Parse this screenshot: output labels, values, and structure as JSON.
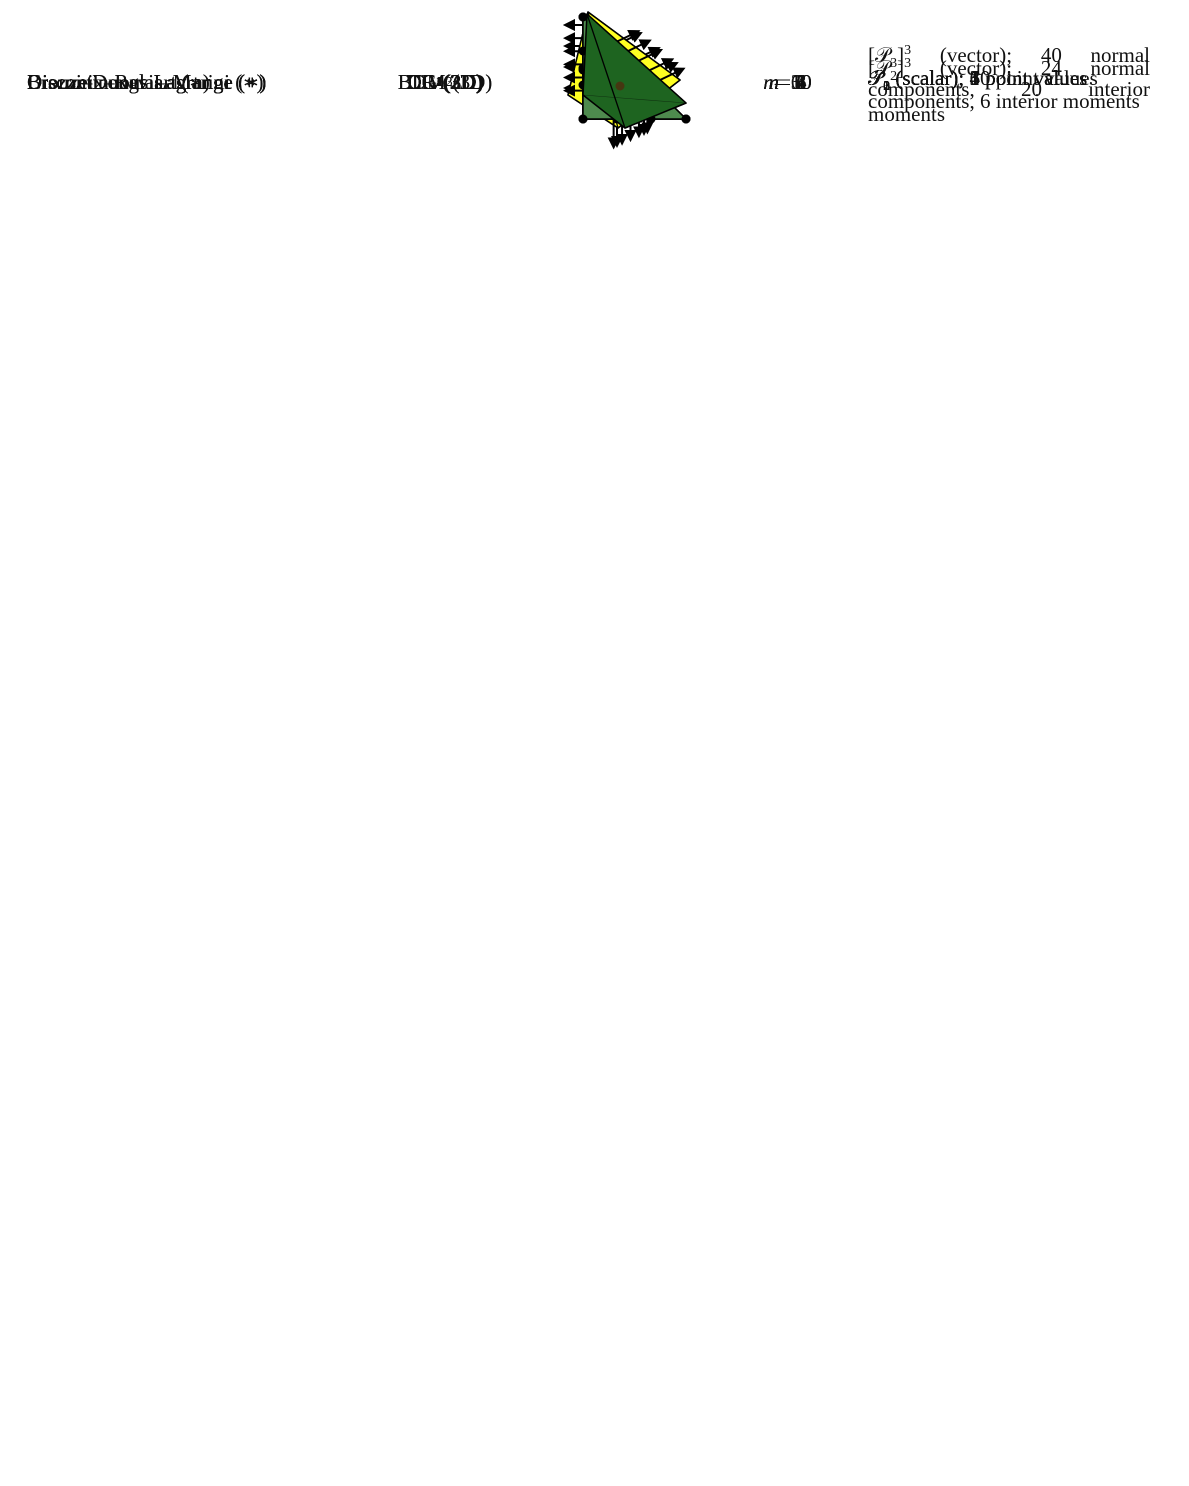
{
  "table": {
    "rows": [
      {
        "name": "Brezzi–Douglas–Marini (∗)",
        "element": [
          {
            "text": "BDM"
          },
          {
            "sub": "2"
          },
          {
            "text": " (3D)"
          }
        ],
        "dofs": [
          {
            "italic": "n"
          },
          {
            "text": " = 30"
          }
        ],
        "description": [
          {
            "text": "[𝒫"
          },
          {
            "sub": "2"
          },
          {
            "text": "]"
          },
          {
            "sup": "3"
          },
          {
            "text": " (vector); 24 normal components, 6 interior moments"
          }
        ]
      },
      {
        "name": "Brezzi–Douglas–Marini (∗)",
        "element": [
          {
            "text": "BDM"
          },
          {
            "sub": "3"
          },
          {
            "text": " (3D)"
          }
        ],
        "dofs": [
          {
            "italic": "n"
          },
          {
            "text": " = 60"
          }
        ],
        "description": [
          {
            "text": "[𝒫"
          },
          {
            "sub": "3"
          },
          {
            "text": "]"
          },
          {
            "sup": "3"
          },
          {
            "text": " (vector); 40 normal components, 20 interior moments"
          }
        ]
      },
      {
        "name": "Crouzeix–Raviart (∗)",
        "element": [
          {
            "text": "CR"
          },
          {
            "sub": "1"
          },
          {
            "text": " (2D)"
          }
        ],
        "dofs": [
          {
            "italic": "n"
          },
          {
            "text": " = 3"
          }
        ],
        "description": [
          {
            "text": "𝒫"
          },
          {
            "sub": "1"
          },
          {
            "text": " (scalar); 3 point values"
          }
        ]
      },
      {
        "name": "Crouzeix–Raviart (∗)",
        "element": [
          {
            "text": "CR"
          },
          {
            "sub": "1"
          },
          {
            "text": " (3D)"
          }
        ],
        "dofs": [
          {
            "italic": "n"
          },
          {
            "text": " = 4"
          }
        ],
        "description": [
          {
            "text": "𝒫"
          },
          {
            "sub": "1"
          },
          {
            "text": " (scalar); 4 point values"
          }
        ]
      },
      {
        "name": "Discontinuous Lagrange (∗)",
        "element": [
          {
            "text": "DG"
          },
          {
            "sub": "0"
          },
          {
            "text": " (2D)"
          }
        ],
        "dofs": [
          {
            "italic": "n"
          },
          {
            "text": " = 1"
          }
        ],
        "description": [
          {
            "text": "𝒫"
          },
          {
            "sub": "0"
          },
          {
            "text": " (scalar); 1 point value"
          }
        ]
      },
      {
        "name": "Discontinuous Lagrange (∗)",
        "element": [
          {
            "text": "DG"
          },
          {
            "sub": "1"
          },
          {
            "text": " (2D)"
          }
        ],
        "dofs": [
          {
            "italic": "n"
          },
          {
            "text": " = 3"
          }
        ],
        "description": [
          {
            "text": "𝒫"
          },
          {
            "sub": "1"
          },
          {
            "text": " (scalar); 3 point values"
          }
        ]
      },
      {
        "name": "Discontinuous Lagrange (∗)",
        "element": [
          {
            "text": "DG"
          },
          {
            "sub": "2"
          },
          {
            "text": " (2D)"
          }
        ],
        "dofs": [
          {
            "italic": "n"
          },
          {
            "text": " = 6"
          }
        ],
        "description": [
          {
            "text": "𝒫"
          },
          {
            "sub": "2"
          },
          {
            "text": " (scalar); 6 point values"
          }
        ]
      },
      {
        "name": "Discontinuous Lagrange (∗)",
        "element": [
          {
            "text": "DG"
          },
          {
            "sub": "3"
          },
          {
            "text": " (2D)"
          }
        ],
        "dofs": [
          {
            "italic": "n"
          },
          {
            "text": " = 10"
          }
        ],
        "description": [
          {
            "text": "𝒫"
          },
          {
            "sub": "3"
          },
          {
            "text": " (scalar); 10 point values"
          }
        ]
      },
      {
        "name": "Discontinuous Lagrange (∗)",
        "element": [
          {
            "text": "DG"
          },
          {
            "sub": "0"
          },
          {
            "text": " (3D)"
          }
        ],
        "dofs": [
          {
            "italic": "n"
          },
          {
            "text": " = 1"
          }
        ],
        "description": [
          {
            "text": "𝒫"
          },
          {
            "sub": "0"
          },
          {
            "text": " (scalar); 1 point value"
          }
        ]
      }
    ]
  }
}
